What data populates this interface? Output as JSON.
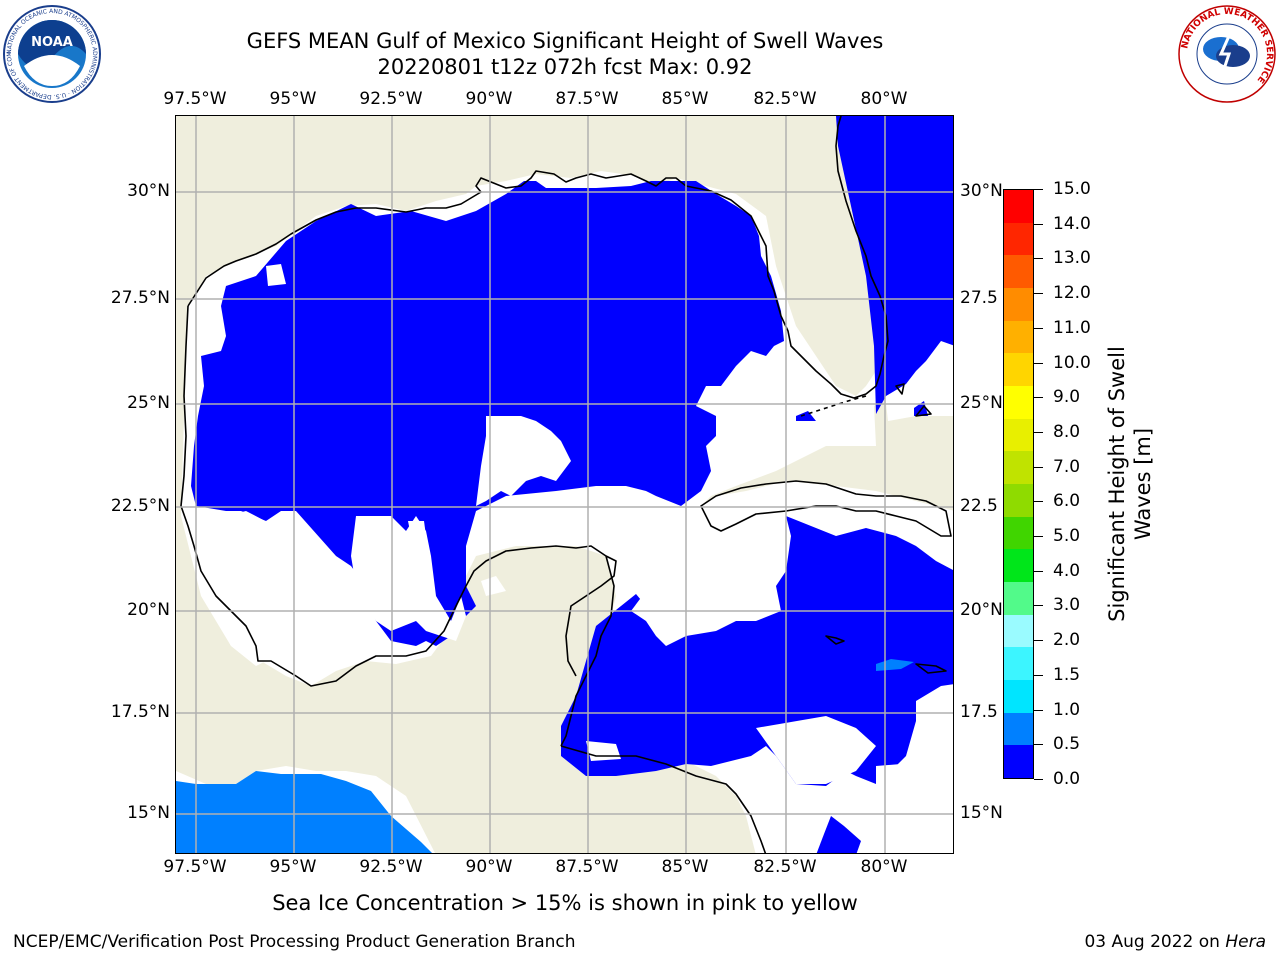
{
  "header": {
    "title": "GEFS MEAN Gulf of Mexico Significant Height of Swell Waves",
    "subtitle": "20220801 t12z 072h fcst   Max: 0.92"
  },
  "logos": {
    "noaa_text": "NOAA",
    "noaa_ring_text": "NATIONAL OCEANIC AND ATMOSPHERIC ADMINISTRATION · U.S. DEPARTMENT OF COMMERCE",
    "nws_ring_text": "NATIONAL WEATHER SERVICE"
  },
  "map": {
    "lon_labels": [
      "97.5°W",
      "95°W",
      "92.5°W",
      "90°W",
      "87.5°W",
      "85°W",
      "82.5°W",
      "80°W"
    ],
    "lat_labels_left": [
      "30°N",
      "27.5°N",
      "25°N",
      "22.5°N",
      "20°N",
      "17.5°N",
      "15°N"
    ],
    "lat_labels_right": [
      "30°N",
      "27.5",
      "25°N",
      "22.5",
      "20°N",
      "17.5",
      "15°N"
    ],
    "colors": {
      "land": "#efeedd",
      "no_data": "#ffffff",
      "coast": "#000000",
      "grid": "#b0b0b0",
      "swell_low": "#0000ff",
      "swell_mid": "#0080ff"
    }
  },
  "colorbar": {
    "label": "Significant Height of Swell Waves [m]",
    "label_line1": "Significant Height of Swell",
    "label_line2": "Waves [m]",
    "ticks": [
      "0.0",
      "0.5",
      "1.0",
      "1.5",
      "2.0",
      "3.0",
      "4.0",
      "5.0",
      "6.0",
      "7.0",
      "8.0",
      "9.0",
      "10.0",
      "11.0",
      "12.0",
      "13.0",
      "14.0",
      "15.0"
    ],
    "colors": [
      "#0000ff",
      "#0080ff",
      "#00e5ff",
      "#3cf5ff",
      "#9afbff",
      "#52fa8a",
      "#00e61a",
      "#40d500",
      "#8fdb00",
      "#c0e300",
      "#e8ef00",
      "#ffff00",
      "#ffd500",
      "#ffb000",
      "#ff8c00",
      "#ff5a00",
      "#ff2600",
      "#ff0000"
    ]
  },
  "note": "Sea Ice Concentration > 15% is shown in pink to yellow",
  "footer": {
    "left": "NCEP/EMC/Verification Post Processing Product Generation Branch",
    "date": "03 Aug 2022 on",
    "host": "Hera"
  }
}
